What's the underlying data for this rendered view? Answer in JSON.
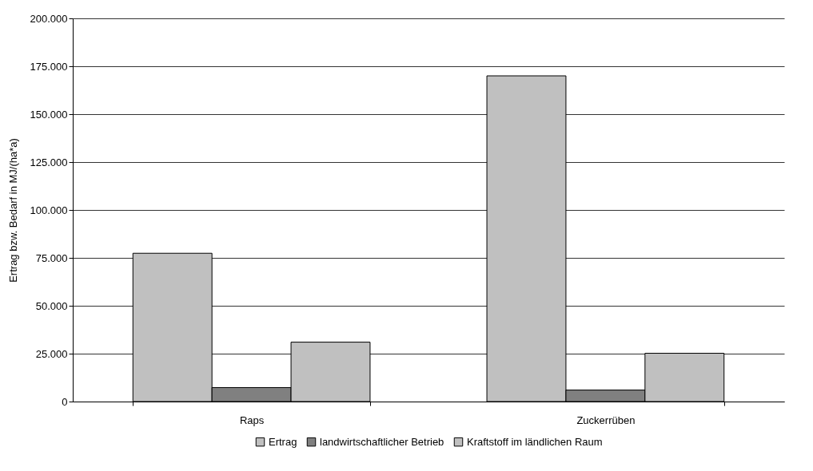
{
  "chart_data": {
    "type": "bar",
    "ylabel": "Ertrag bzw. Bedarf in MJ/(ha*a)",
    "categories": [
      "Raps",
      "Zuckerrüben"
    ],
    "series": [
      {
        "name": "Ertrag",
        "color": "#c0c0c0",
        "values": [
          77400,
          170000
        ]
      },
      {
        "name": "landwirtschaftlicher Betrieb",
        "color": "#808080",
        "values": [
          7300,
          6000
        ]
      },
      {
        "name": "Kraftstoff im ländlichen Raum",
        "color": "#c0c0c0",
        "values": [
          31000,
          25200
        ]
      }
    ],
    "ylim": [
      0,
      200000
    ],
    "yticks": [
      {
        "value": 0,
        "label": "0"
      },
      {
        "value": 25000,
        "label": "25.000"
      },
      {
        "value": 50000,
        "label": "50.000"
      },
      {
        "value": 75000,
        "label": "75.000"
      },
      {
        "value": 100000,
        "label": "100.000"
      },
      {
        "value": 125000,
        "label": "125.000"
      },
      {
        "value": 150000,
        "label": "150.000"
      },
      {
        "value": 175000,
        "label": "175.000"
      },
      {
        "value": 200000,
        "label": "200.000"
      }
    ],
    "grid": "y",
    "legend": "bottom"
  }
}
